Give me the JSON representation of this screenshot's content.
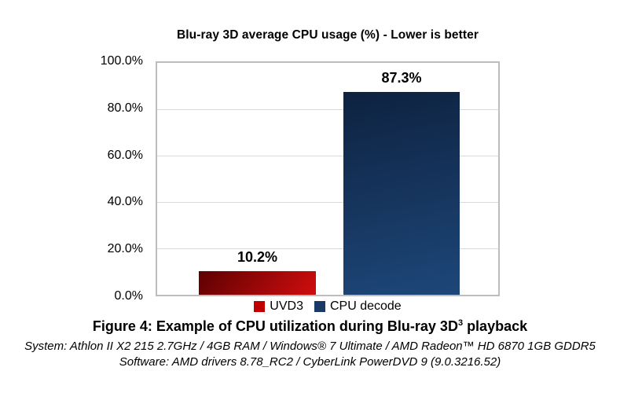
{
  "chart_data": {
    "type": "bar",
    "title": "Blu-ray 3D average CPU usage (%) - Lower is better",
    "ylabel": "",
    "xlabel": "",
    "ylim": [
      0,
      100
    ],
    "yticks": [
      "100.0%",
      "80.0%",
      "60.0%",
      "40.0%",
      "20.0%",
      "0.0%"
    ],
    "grid": true,
    "legend_position": "bottom",
    "series": [
      {
        "name": "UVD3",
        "value": 10.2,
        "label": "10.2%",
        "color_start": "#5e0101",
        "color_end": "#d00d0e",
        "legend_color": "#c00000"
      },
      {
        "name": "CPU decode",
        "value": 87.3,
        "label": "87.3%",
        "color_start": "#0e2240",
        "color_end": "#1d4779",
        "legend_color": "#1a3a66"
      }
    ]
  },
  "caption": {
    "figure_text": "Figure 4: Example of CPU utilization during Blu-ray 3D",
    "figure_superscript": "3",
    "figure_suffix": " playback",
    "system_line": "System: Athlon II X2 215 2.7GHz / 4GB RAM / Windows® 7 Ultimate / AMD Radeon™ HD 6870 1GB GDDR5",
    "software_line": "Software: AMD drivers 8.78_RC2 / CyberLink PowerDVD 9 (9.0.3216.52)"
  }
}
